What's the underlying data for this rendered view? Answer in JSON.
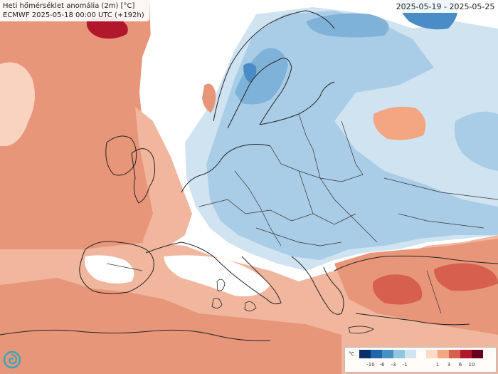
{
  "map": {
    "title_line1": "Heti hőmérséklet anomália (2m) [°C]",
    "title_line2": "ECMWF 2025-05-18 00:00 UTC (+192h)",
    "date_range": "2025-05-19 - 2025-05-25"
  },
  "legend": {
    "unit": "°C",
    "ticks": [
      "-10",
      "-6",
      "-3",
      "-1",
      "1",
      "3",
      "6",
      "10"
    ],
    "cold_colors": [
      "#08306b",
      "#2166ac",
      "#4393c3",
      "#92c5de",
      "#d1e5f0"
    ],
    "warm_colors": [
      "#fddbc7",
      "#f4a582",
      "#d6604d",
      "#b2182b",
      "#67001f"
    ]
  },
  "colors": {
    "sea_warm": "#e8967a",
    "land_warm": "#f1b79e",
    "light_warm": "#fad2c0",
    "neutral": "#ffffff",
    "light_cold": "#cfe3f1",
    "cold": "#a9cde6",
    "colder": "#7fb2d8",
    "strong_cold": "#4a8cc6",
    "hot": "#d6604d",
    "very_hot": "#b2182b",
    "border": "#222222"
  }
}
